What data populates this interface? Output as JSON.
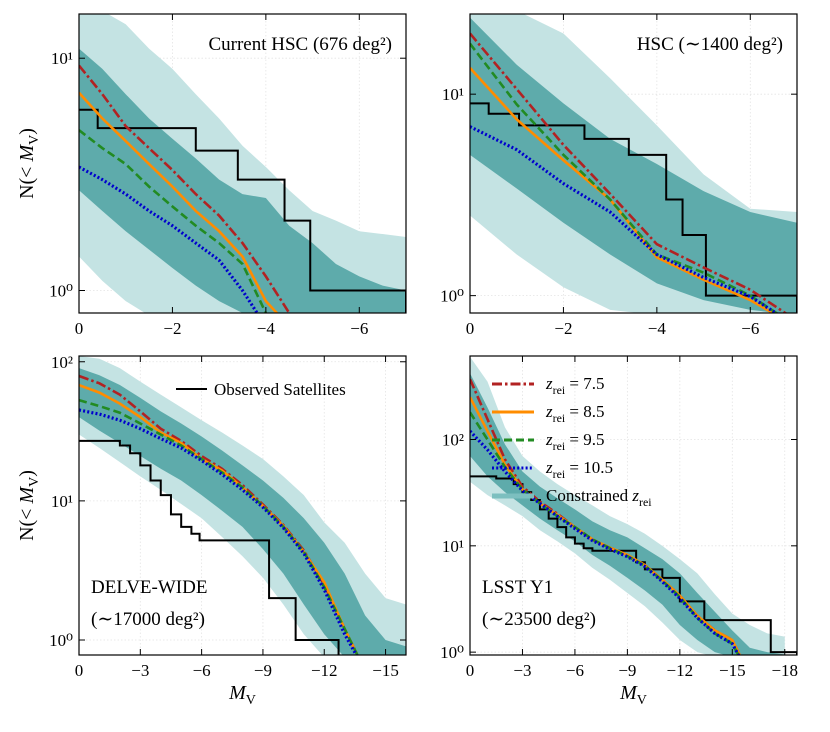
{
  "chart_data": [
    {
      "type": "line",
      "annotation": [
        "Current HSC (676 deg²)"
      ],
      "ylabel": [
        "N(< ",
        "M",
        "V",
        ")"
      ],
      "xlim": [
        0,
        -7
      ],
      "xticks": [
        0,
        {
          "value": -2,
          "label": "−2"
        },
        {
          "value": -4,
          "label": "−4"
        },
        {
          "value": -6,
          "label": "−6"
        }
      ],
      "ylim": [
        0.8,
        15.5
      ],
      "log_y": true,
      "yticks": [
        {
          "value": 1,
          "label": "10⁰"
        },
        {
          "value": 10,
          "label": "10¹"
        }
      ],
      "grid": true,
      "x": [
        0,
        -0.5,
        -1,
        -1.5,
        -2,
        -2.5,
        -3,
        -3.5,
        -4,
        -4.5,
        -5,
        -5.5,
        -6,
        -6.5,
        -7
      ],
      "band_outer": {
        "color": "#c4e3e3",
        "upper": [
          16,
          16,
          14,
          11,
          9,
          7,
          5.5,
          4.2,
          3.4,
          2.7,
          2.2,
          2.0,
          1.8,
          1.75,
          1.7
        ],
        "lower": [
          1.4,
          1.1,
          0.9,
          0.78,
          0.78,
          0.78,
          0.78,
          0.78,
          0.78,
          0.78,
          0.78,
          0.78,
          0.78,
          0.78,
          0.78
        ]
      },
      "band_inner": {
        "color": "#5eabab",
        "upper": [
          11,
          9,
          7,
          5.5,
          4.5,
          3.7,
          3.0,
          2.6,
          2.5,
          1.9,
          1.6,
          1.3,
          1.15,
          1.05,
          1.0
        ],
        "lower": [
          2.7,
          2.2,
          1.8,
          1.5,
          1.25,
          1.05,
          0.9,
          0.8,
          0.78,
          0.78,
          0.78,
          0.78,
          0.78,
          0.78,
          0.78
        ]
      },
      "observed": {
        "color": "#000000",
        "edges": [
          0,
          -0.4,
          -2.5,
          -3.4,
          -4.4,
          -4.95,
          -7
        ],
        "values": [
          6,
          5,
          4,
          3,
          2,
          1
        ]
      },
      "series": [
        {
          "color": "#b22222",
          "style": "dashdot",
          "values": [
            9.3,
            7,
            5.1,
            4.1,
            3.3,
            2.6,
            2.1,
            1.6,
            1.15,
            0.8,
            null,
            null,
            null,
            null,
            null
          ]
        },
        {
          "color": "#ff8c00",
          "style": "solid",
          "values": [
            7.1,
            5.5,
            4.4,
            3.5,
            2.8,
            2.2,
            1.8,
            1.4,
            0.9,
            0.7,
            null,
            null,
            null,
            null,
            null
          ]
        },
        {
          "color": "#228b22",
          "style": "dashed",
          "values": [
            4.9,
            4.1,
            3.5,
            2.8,
            2.3,
            1.9,
            1.6,
            1.3,
            0.8,
            null,
            null,
            null,
            null,
            null,
            null
          ]
        },
        {
          "color": "#0000cd",
          "style": "dotted",
          "values": [
            3.4,
            3.0,
            2.6,
            2.2,
            1.9,
            1.6,
            1.35,
            1.0,
            0.7,
            null,
            null,
            null,
            null,
            null,
            null
          ]
        }
      ]
    },
    {
      "type": "line",
      "annotation": [
        "HSC (∼1400 deg²)"
      ],
      "xlim": [
        0,
        -7
      ],
      "xticks": [
        0,
        {
          "value": -2,
          "label": "−2"
        },
        {
          "value": -4,
          "label": "−4"
        },
        {
          "value": -6,
          "label": "−6"
        }
      ],
      "ylim": [
        0.82,
        25
      ],
      "log_y": true,
      "yticks": [
        {
          "value": 1,
          "label": "10⁰"
        },
        {
          "value": 10,
          "label": "10¹"
        }
      ],
      "grid": true,
      "x": [
        0,
        -1,
        -2,
        -3,
        -4,
        -5,
        -6,
        -7
      ],
      "band_outer": {
        "color": "#c4e3e3",
        "upper": [
          26,
          26,
          20,
          12,
          7,
          4,
          2.7,
          2.6
        ],
        "lower": [
          2.5,
          1.6,
          1.1,
          0.85,
          0.8,
          0.8,
          0.8,
          0.8
        ]
      },
      "band_inner": {
        "color": "#5eabab",
        "upper": [
          24,
          14,
          9,
          6,
          4.5,
          3.3,
          2.6,
          2.3
        ],
        "lower": [
          5,
          3.4,
          2.3,
          1.6,
          1.15,
          0.95,
          0.85,
          0.8
        ]
      },
      "observed": {
        "color": "#000000",
        "edges": [
          0,
          -0.4,
          -1.05,
          -2.45,
          -3.4,
          -4.2,
          -4.55,
          -5.05,
          -7
        ],
        "values": [
          9,
          8,
          7,
          6,
          5,
          3,
          2,
          1
        ]
      },
      "series": [
        {
          "color": "#b22222",
          "style": "dashdot",
          "values": [
            20,
            10.6,
            5.6,
            3.2,
            1.8,
            1.38,
            1.07,
            0.75
          ]
        },
        {
          "color": "#ff8c00",
          "style": "solid",
          "values": [
            13.5,
            7.5,
            4.7,
            3.0,
            1.55,
            1.2,
            0.95,
            0.7
          ]
        },
        {
          "color": "#228b22",
          "style": "dashed",
          "values": [
            17.8,
            8.9,
            5.0,
            3.0,
            1.6,
            1.3,
            1.0,
            0.7
          ]
        },
        {
          "color": "#0000cd",
          "style": "dotted",
          "values": [
            6.9,
            5.3,
            3.6,
            2.6,
            1.6,
            1.23,
            0.99,
            0.7
          ]
        }
      ]
    },
    {
      "type": "line",
      "annotation": [
        "DELVE-WIDE",
        "(∼17000 deg²)"
      ],
      "ylabel": [
        "N(< ",
        "M",
        "V",
        ")"
      ],
      "xlabel": [
        "M",
        "V"
      ],
      "xlim": [
        0,
        -16
      ],
      "xticks": [
        0,
        {
          "value": -3,
          "label": "−3"
        },
        {
          "value": -6,
          "label": "−6"
        },
        {
          "value": -9,
          "label": "−9"
        },
        {
          "value": -12,
          "label": "−12"
        },
        {
          "value": -15,
          "label": "−15"
        }
      ],
      "ylim": [
        0.78,
        110
      ],
      "log_y": true,
      "yticks": [
        {
          "value": 1,
          "label": "10⁰"
        },
        {
          "value": 10,
          "label": "10¹"
        },
        {
          "value": 100,
          "label": "10²"
        }
      ],
      "grid": true,
      "x": [
        0,
        -1,
        -2,
        -3,
        -4,
        -5,
        -6,
        -7,
        -8,
        -9,
        -10,
        -11,
        -12,
        -13,
        -14,
        -15,
        -16
      ],
      "band_outer": {
        "color": "#c4e3e3",
        "upper": [
          110,
          105,
          90,
          72,
          58,
          47,
          38,
          31,
          25,
          20,
          15,
          11,
          7,
          5,
          3,
          2,
          1.8
        ],
        "lower": [
          30,
          24,
          19,
          15,
          12,
          9.5,
          7.5,
          5.5,
          4,
          2.8,
          1.8,
          1.1,
          0.75,
          0.75,
          0.75,
          0.75,
          0.75
        ]
      },
      "band_inner": {
        "color": "#5eabab",
        "upper": [
          90,
          80,
          68,
          55,
          44,
          36,
          29,
          23,
          18,
          14,
          10.5,
          7.5,
          5,
          3,
          1.5,
          1.0,
          0.9
        ],
        "lower": [
          40,
          32,
          26,
          21,
          17,
          14,
          11,
          8.5,
          6.5,
          4.5,
          3,
          1.8,
          1.1,
          0.75,
          0.75,
          0.75,
          0.75
        ]
      },
      "observed": {
        "name": "Observed Satellites",
        "color": "#000000",
        "edges": [
          0,
          -2,
          -2.5,
          -3,
          -3.5,
          -4,
          -4.5,
          -5,
          -5.5,
          -5.9,
          -9.3,
          -10.6,
          -12.7
        ],
        "values": [
          27,
          25,
          22,
          18,
          14,
          11,
          8,
          6.5,
          5.8,
          5.2,
          2,
          1
        ]
      },
      "series": [
        {
          "color": "#b22222",
          "style": "dashdot",
          "values": [
            79,
            70,
            58,
            44,
            33,
            27,
            21,
            17,
            13,
            9.4,
            6.7,
            4.4,
            2.5,
            1.2,
            0.6,
            null,
            null
          ]
        },
        {
          "color": "#ff8c00",
          "style": "solid",
          "values": [
            68,
            60,
            50,
            40,
            31,
            26,
            20,
            16.5,
            12.5,
            9.2,
            6.6,
            4.3,
            2.6,
            1.2,
            0.6,
            null,
            null
          ]
        },
        {
          "color": "#228b22",
          "style": "dashed",
          "values": [
            53,
            48,
            43,
            36,
            30,
            25,
            20,
            16,
            12.5,
            9.2,
            6.5,
            4.3,
            2.4,
            1.2,
            0.6,
            null,
            null
          ]
        },
        {
          "color": "#0000cd",
          "style": "dotted",
          "values": [
            45,
            42,
            38,
            33,
            28,
            24,
            19.5,
            15.5,
            12,
            9,
            6.4,
            4.2,
            2.3,
            1.1,
            0.6,
            null,
            null
          ]
        }
      ]
    },
    {
      "type": "line",
      "annotation": [
        "LSST Y1",
        "(∼23500 deg²)"
      ],
      "xlabel": [
        "M",
        "V"
      ],
      "xlim": [
        0,
        -18.7
      ],
      "xticks": [
        0,
        {
          "value": -3,
          "label": "−3"
        },
        {
          "value": -6,
          "label": "−6"
        },
        {
          "value": -9,
          "label": "−9"
        },
        {
          "value": -12,
          "label": "−12"
        },
        {
          "value": -15,
          "label": "−15"
        },
        {
          "value": -18,
          "label": "−18"
        }
      ],
      "ylim": [
        0.94,
        610
      ],
      "log_y": true,
      "yticks": [
        {
          "value": 1,
          "label": "10⁰"
        },
        {
          "value": 10,
          "label": "10¹"
        },
        {
          "value": 100,
          "label": "10²"
        }
      ],
      "grid": true,
      "x": [
        0,
        -1,
        -2,
        -3,
        -4,
        -5,
        -6,
        -7,
        -8,
        -9,
        -10,
        -11,
        -12,
        -13,
        -14,
        -15,
        -16,
        -17,
        -18
      ],
      "band_outer": {
        "color": "#c4e3e3",
        "upper": [
          600,
          350,
          130,
          70,
          50,
          38,
          30,
          24,
          19,
          16,
          13,
          10,
          7.5,
          5.5,
          3.5,
          2.3,
          1.8,
          1.5,
          1.4
        ],
        "lower": [
          40,
          30,
          24,
          19,
          14,
          11,
          8.5,
          6.2,
          4.8,
          3.6,
          2.7,
          1.9,
          1.3,
          1.0,
          0.9,
          0.9,
          0.9,
          0.9,
          0.9
        ]
      },
      "band_inner": {
        "color": "#5eabab",
        "name": [
          "Constrained ",
          "z",
          "rei"
        ],
        "legend_color": "#7cbfbf",
        "upper": [
          420,
          200,
          90,
          50,
          36,
          28,
          22,
          17,
          14,
          12,
          9.5,
          7.5,
          5.5,
          3.6,
          2.4,
          1.6,
          1.1,
          1.0,
          0.95
        ],
        "lower": [
          70,
          45,
          32,
          24,
          18,
          14,
          11,
          8.2,
          6.5,
          5,
          3.8,
          2.8,
          1.8,
          1.3,
          1.0,
          0.9,
          0.9,
          0.9,
          0.9
        ]
      },
      "observed": {
        "color": "#000000",
        "edges": [
          0,
          -1.5,
          -2.5,
          -3,
          -3.5,
          -4,
          -4.5,
          -5,
          -5.5,
          -6,
          -6.5,
          -7,
          -9.5,
          -10,
          -11,
          -12,
          -13.4,
          -17.2,
          -18.7
        ],
        "values": [
          45,
          43,
          38,
          32,
          27,
          22,
          18,
          15,
          12,
          10.5,
          9.5,
          9,
          7,
          6,
          5,
          3,
          2,
          1
        ]
      },
      "series": [
        {
          "name": [
            "z",
            "rei",
            " = 7.5"
          ],
          "color": "#b22222",
          "style": "dashdot",
          "values": [
            370,
            155,
            65,
            36,
            26,
            20,
            15,
            11.4,
            9.6,
            8.2,
            6.6,
            4.8,
            3.4,
            2.2,
            1.6,
            1.3,
            0.6,
            null,
            null
          ]
        },
        {
          "name": [
            "z",
            "rei",
            " = 8.5"
          ],
          "color": "#ff8c00",
          "style": "solid",
          "values": [
            250,
            120,
            58,
            34,
            25,
            19.5,
            15,
            11.5,
            9.6,
            8.2,
            6.6,
            4.8,
            3.4,
            2.2,
            1.6,
            1.3,
            0.6,
            null,
            null
          ]
        },
        {
          "name": [
            "z",
            "rei",
            " = 9.5"
          ],
          "color": "#228b22",
          "style": "dashed",
          "values": [
            180,
            100,
            55,
            34,
            25,
            19,
            15,
            11.5,
            9.5,
            8,
            6.5,
            4.7,
            3.3,
            2.1,
            1.5,
            1.2,
            0.6,
            null,
            null
          ]
        },
        {
          "name": [
            "z",
            "rei",
            " = 10.5"
          ],
          "color": "#0000cd",
          "style": "dotted",
          "values": [
            120,
            80,
            50,
            33,
            25,
            19,
            14.5,
            11.2,
            9.3,
            7.9,
            6.4,
            4.6,
            3.2,
            2.1,
            1.5,
            1.2,
            0.6,
            null,
            null
          ]
        }
      ]
    }
  ]
}
